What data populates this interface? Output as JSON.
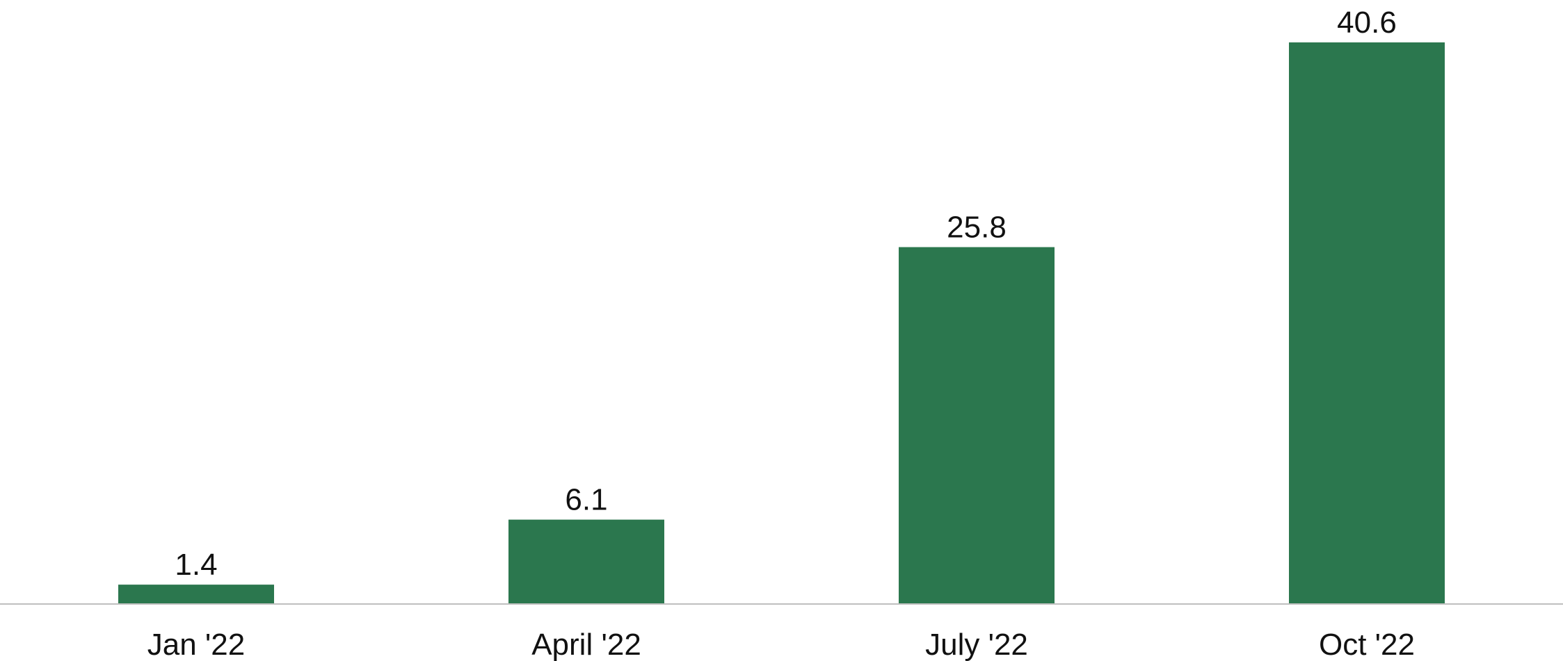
{
  "chart_data": {
    "type": "bar",
    "categories": [
      "Jan '22",
      "April '22",
      "July '22",
      "Oct '22"
    ],
    "values": [
      1.4,
      6.1,
      25.8,
      40.6
    ],
    "value_labels": [
      "1.4",
      "6.1",
      "25.8",
      "40.6"
    ],
    "title": "",
    "xlabel": "",
    "ylabel": "",
    "ylim": [
      0,
      40.6
    ],
    "grid": false,
    "legend": "none",
    "bar_color": "#2b774e",
    "axis_color": "#bfbfbf"
  }
}
